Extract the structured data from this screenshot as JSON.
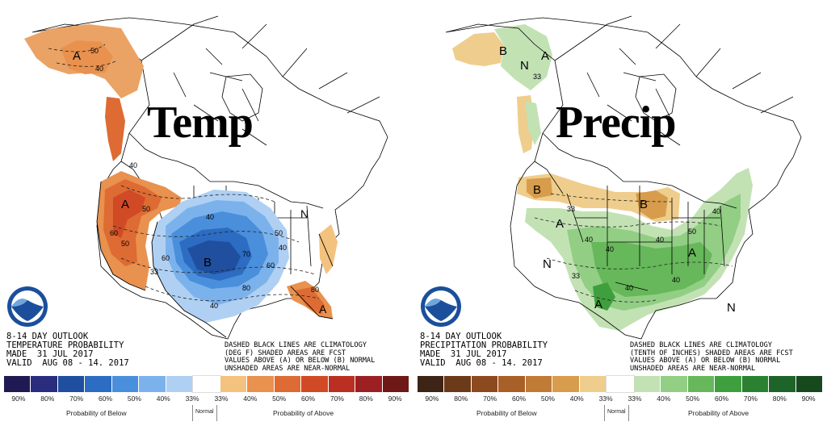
{
  "left": {
    "title": "Temp",
    "outlook": [
      "8-14 DAY OUTLOOK",
      "TEMPERATURE PROBABILITY",
      "MADE  31 JUL 2017",
      "VALID  AUG 08 - 14. 2017"
    ],
    "disclaimer": [
      "DASHED BLACK LINES ARE CLIMATOLOGY",
      "(DEG F) SHADED AREAS ARE FCST",
      "VALUES ABOVE (A) OR BELOW (B) NORMAL",
      "UNSHADED AREAS ARE NEAR-NORMAL"
    ],
    "legend": {
      "colors": [
        "#1f1a54",
        "#2a2d7d",
        "#1f4f9e",
        "#2c6cc2",
        "#4a8fdb",
        "#7cb2ec",
        "#b0d0f3",
        "#ffffff",
        "#f3c27e",
        "#e9914e",
        "#dd6b33",
        "#d04a26",
        "#bb2f22",
        "#9c2021",
        "#6e1818"
      ],
      "ticks": [
        "90%",
        "80%",
        "70%",
        "60%",
        "50%",
        "40%",
        "33%",
        "33%",
        "40%",
        "50%",
        "60%",
        "70%",
        "80%",
        "90%"
      ],
      "caption_below": "Probability of Below",
      "caption_normal": "Normal",
      "caption_above": "Probability of Above"
    },
    "map_labels": {
      "alaska": "A",
      "west": "A",
      "center": "B",
      "northeast": "N",
      "florida": "A"
    },
    "contours": [
      "50",
      "40",
      "40",
      "50",
      "60",
      "50",
      "40",
      "60",
      "70",
      "50",
      "80",
      "60",
      "80",
      "40",
      "33",
      "40"
    ]
  },
  "right": {
    "title": "Precip",
    "outlook": [
      "8-14 DAY OUTLOOK",
      "PRECIPITATION PROBABILITY",
      "MADE  31 JUL 2017",
      "VALID  AUG 08 - 14. 2017"
    ],
    "disclaimer": [
      "DASHED BLACK LINES ARE CLIMATOLOGY",
      "(TENTH OF INCHES) SHADED AREAS ARE FCST",
      "VALUES ABOVE (A) OR BELOW (B) NORMAL",
      "UNSHADED AREAS ARE NEAR-NORMAL"
    ],
    "legend": {
      "colors": [
        "#3d2416",
        "#6b3a18",
        "#8c4a1e",
        "#a95f28",
        "#c07b36",
        "#d79d4c",
        "#efcd8c",
        "#ffffff",
        "#c2e2b4",
        "#92ce84",
        "#66b85b",
        "#3f9f3e",
        "#2b8132",
        "#1d6428",
        "#17491f"
      ],
      "ticks": [
        "90%",
        "80%",
        "70%",
        "60%",
        "50%",
        "40%",
        "33%",
        "33%",
        "40%",
        "50%",
        "60%",
        "70%",
        "80%",
        "90%"
      ],
      "caption_below": "Probability of Below",
      "caption_normal": "Normal",
      "caption_above": "Probability of Above"
    },
    "map_labels": {
      "alaska_b": "B",
      "alaska_n": "N",
      "alaska_a": "A",
      "alaska_val": "33",
      "nw_b": "B",
      "plains_b": "B",
      "west_a": "A",
      "west_n": "N",
      "east_a": "A",
      "sw_a": "A",
      "se_n": "N"
    },
    "contours": [
      "33",
      "40",
      "40",
      "40",
      "40",
      "50",
      "40",
      "33",
      "40"
    ]
  }
}
